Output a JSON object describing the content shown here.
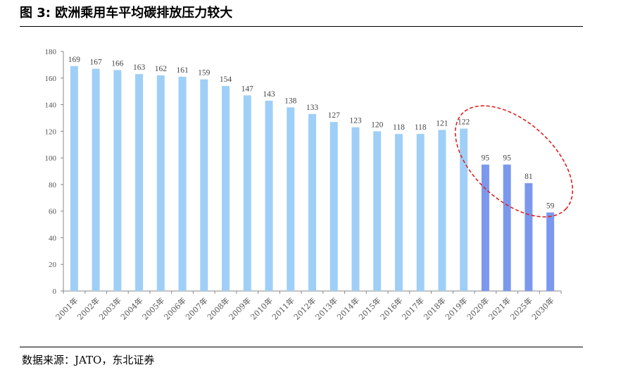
{
  "figure": {
    "title": "图 3: 欧洲乘用车平均碳排放压力较大",
    "source": "数据来源：JATO，东北证券"
  },
  "colors": {
    "historical_bar": "#9fcff7",
    "projected_bar": "#7b98ee",
    "highlight_ellipse": "#e02020",
    "axis": "#888888"
  },
  "chart_data": {
    "type": "bar",
    "categories": [
      "2001年",
      "2002年",
      "2003年",
      "2004年",
      "2005年",
      "2006年",
      "2007年",
      "2008年",
      "2009年",
      "2010年",
      "2011年",
      "2012年",
      "2013年",
      "2014年",
      "2015年",
      "2016年",
      "2017年",
      "2018年",
      "2019年",
      "2020年",
      "2021年",
      "2025年",
      "2030年"
    ],
    "values": [
      169,
      167,
      166,
      163,
      162,
      161,
      159,
      154,
      147,
      143,
      138,
      133,
      127,
      123,
      120,
      118,
      118,
      121,
      122,
      95,
      95,
      81,
      59
    ],
    "projected_from_index": 19,
    "ylim": [
      0,
      180
    ],
    "yticks": [
      0,
      20,
      40,
      60,
      80,
      100,
      120,
      140,
      160,
      180
    ],
    "data_labels": true,
    "grid": false,
    "annotation": "red dashed ellipse highlighting 2019年–2030年"
  }
}
